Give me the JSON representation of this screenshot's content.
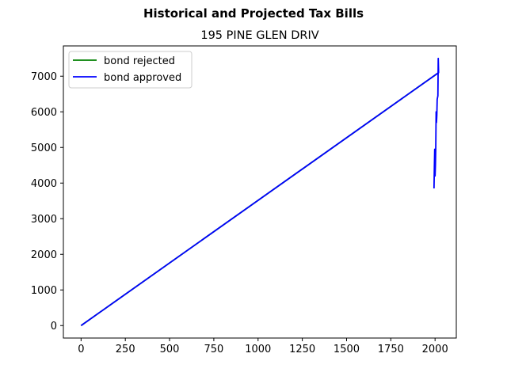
{
  "chart_data": {
    "type": "line",
    "suptitle": "Historical and Projected Tax Bills",
    "title": "195 PINE GLEN DRIV",
    "xlabel": "",
    "ylabel": "",
    "xlim": [
      -100,
      2120
    ],
    "ylim": [
      -350,
      7850
    ],
    "xticks": [
      0,
      250,
      500,
      750,
      1000,
      1250,
      1500,
      1750,
      2000
    ],
    "yticks": [
      0,
      1000,
      2000,
      3000,
      4000,
      5000,
      6000,
      7000
    ],
    "grid": false,
    "legend": "upper left",
    "series": [
      {
        "name": "bond rejected",
        "color": "#008000",
        "x": [
          0,
          2020
        ],
        "y": [
          0,
          7100
        ]
      },
      {
        "name": "bond approved",
        "color": "#0000ff",
        "x": [
          0,
          2020,
          2018,
          2016,
          2014,
          2012,
          2010,
          2008,
          2006,
          2004,
          2002,
          2000,
          1998,
          1996,
          1994
        ],
        "y": [
          0,
          7100,
          7500,
          6450,
          6400,
          6350,
          5900,
          5700,
          6000,
          5000,
          4500,
          4200,
          4950,
          4450,
          3850
        ]
      }
    ]
  }
}
